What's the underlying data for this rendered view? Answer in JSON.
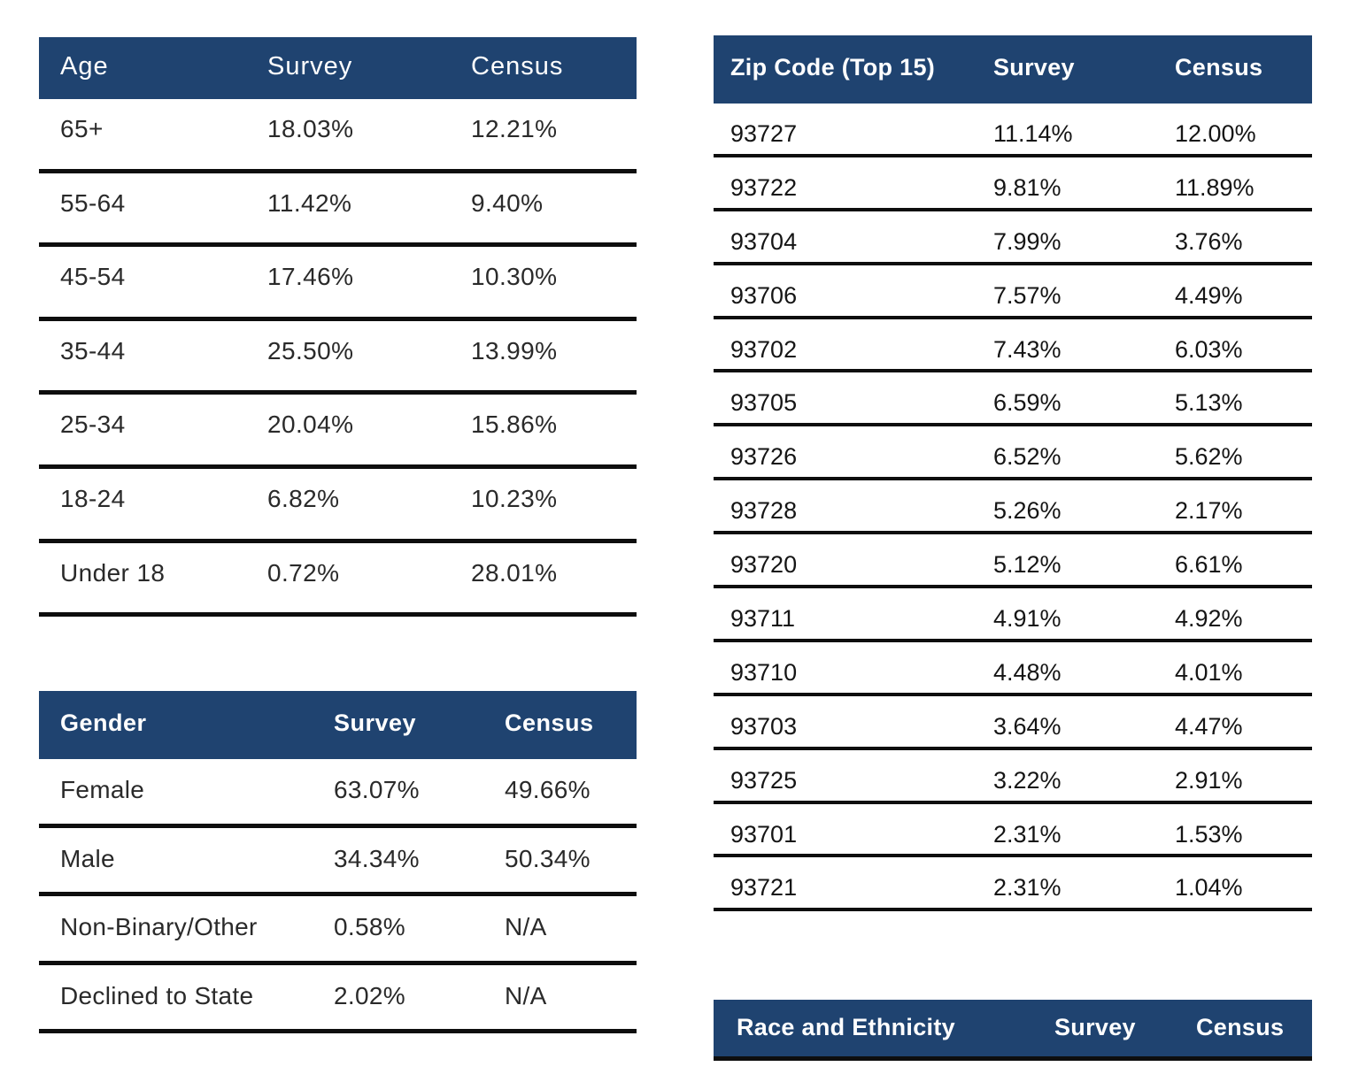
{
  "colors": {
    "header_bg": "#1F4370",
    "header_text": "#FFFFFF",
    "separator": "#0E0E0E",
    "left_text": "#2A2A2A",
    "right_text": "#151515"
  },
  "tables": {
    "age": {
      "headers": [
        "Age",
        "Survey",
        "Census"
      ],
      "rows": [
        [
          "65+",
          "18.03%",
          "12.21%"
        ],
        [
          "55-64",
          "11.42%",
          "9.40%"
        ],
        [
          "45-54",
          "17.46%",
          "10.30%"
        ],
        [
          "35-44",
          "25.50%",
          "13.99%"
        ],
        [
          "25-34",
          "20.04%",
          "15.86%"
        ],
        [
          "18-24",
          "6.82%",
          "10.23%"
        ],
        [
          "Under 18",
          "0.72%",
          "28.01%"
        ]
      ]
    },
    "gender": {
      "headers": [
        "Gender",
        "Survey",
        "Census"
      ],
      "rows": [
        [
          "Female",
          "63.07%",
          "49.66%"
        ],
        [
          "Male",
          "34.34%",
          "50.34%"
        ],
        [
          "Non-Binary/Other",
          "0.58%",
          "N/A"
        ],
        [
          "Declined to State",
          "2.02%",
          "N/A"
        ]
      ]
    },
    "zip": {
      "headers": [
        "Zip Code (Top 15)",
        "Survey",
        "Census"
      ],
      "rows": [
        [
          "93727",
          "11.14%",
          "12.00%"
        ],
        [
          "93722",
          "9.81%",
          "11.89%"
        ],
        [
          "93704",
          "7.99%",
          "3.76%"
        ],
        [
          "93706",
          "7.57%",
          "4.49%"
        ],
        [
          "93702",
          "7.43%",
          "6.03%"
        ],
        [
          "93705",
          "6.59%",
          "5.13%"
        ],
        [
          "93726",
          "6.52%",
          "5.62%"
        ],
        [
          "93728",
          "5.26%",
          "2.17%"
        ],
        [
          "93720",
          "5.12%",
          "6.61%"
        ],
        [
          "93711",
          "4.91%",
          "4.92%"
        ],
        [
          "93710",
          "4.48%",
          "4.01%"
        ],
        [
          "93703",
          "3.64%",
          "4.47%"
        ],
        [
          "93725",
          "3.22%",
          "2.91%"
        ],
        [
          "93701",
          "2.31%",
          "1.53%"
        ],
        [
          "93721",
          "2.31%",
          "1.04%"
        ]
      ]
    },
    "race": {
      "headers": [
        "Race and Ethnicity",
        "Survey",
        "Census"
      ],
      "rows": []
    }
  }
}
